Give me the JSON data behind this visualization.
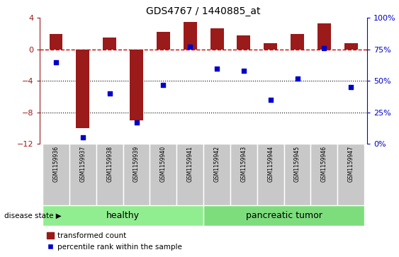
{
  "title": "GDS4767 / 1440885_at",
  "samples": [
    "GSM1159936",
    "GSM1159937",
    "GSM1159938",
    "GSM1159939",
    "GSM1159940",
    "GSM1159941",
    "GSM1159942",
    "GSM1159943",
    "GSM1159944",
    "GSM1159945",
    "GSM1159946",
    "GSM1159947"
  ],
  "transformed_count": [
    2.0,
    -10.0,
    1.5,
    -9.0,
    2.2,
    3.5,
    2.7,
    1.8,
    0.8,
    2.0,
    3.3,
    0.8
  ],
  "percentile_rank": [
    65,
    5,
    40,
    17,
    47,
    77,
    60,
    58,
    35,
    52,
    76,
    45
  ],
  "healthy_count": 6,
  "tumor_count": 6,
  "bar_color": "#9b1a1a",
  "dot_color": "#0000cc",
  "dashed_line_color": "#cc0000",
  "background_color": "#ffffff",
  "healthy_label": "healthy",
  "tumor_label": "pancreatic tumor",
  "disease_state_label": "disease state",
  "legend_bar_label": "transformed count",
  "legend_dot_label": "percentile rank within the sample",
  "healthy_fill": "#90ee90",
  "tumor_fill": "#7ddd7d",
  "ylim_left": [
    -12,
    4
  ],
  "ylim_right": [
    0,
    100
  ],
  "yticks_left": [
    4,
    0,
    -4,
    -8,
    -12
  ],
  "yticks_right": [
    0,
    25,
    50,
    75,
    100
  ],
  "bar_width": 0.5,
  "sample_box_color": "#c8c8c8",
  "label_fontsize": 5.5,
  "title_fontsize": 10
}
